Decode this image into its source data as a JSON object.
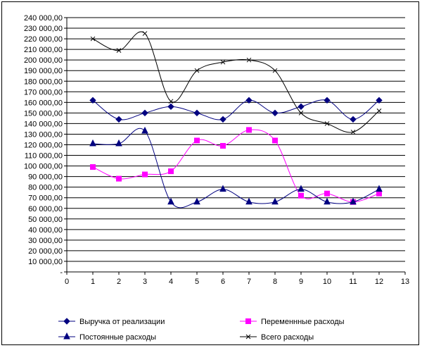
{
  "chart_data": {
    "type": "line",
    "xlim": [
      0,
      13
    ],
    "ylim": [
      0,
      240000
    ],
    "x_ticks": [
      "0",
      "1",
      "2",
      "3",
      "4",
      "5",
      "6",
      "7",
      "8",
      "9",
      "10",
      "11",
      "12",
      "13"
    ],
    "y_ticks": [
      "-",
      "10 000,00",
      "20 000,00",
      "30 000,00",
      "40 000,00",
      "50 000,00",
      "60 000,00",
      "70 000,00",
      "80 000,00",
      "90 000,00",
      "100 000,00",
      "110 000,00",
      "120 000,00",
      "130 000,00",
      "140 000,00",
      "150 000,00",
      "160 000,00",
      "170 000,00",
      "180 000,00",
      "190 000,00",
      "200 000,00",
      "210 000,00",
      "220 000,00",
      "230 000,00",
      "240 000,00"
    ],
    "grid": "horizontal",
    "legend_position": "bottom",
    "x": [
      1,
      2,
      3,
      4,
      5,
      6,
      7,
      8,
      9,
      10,
      11,
      12
    ],
    "series": [
      {
        "name": "Выручка от реализации",
        "color": "#000080",
        "marker": "diamond",
        "values": [
          162000,
          144000,
          150000,
          156000,
          150000,
          144000,
          162000,
          150000,
          156000,
          162000,
          144000,
          162000
        ]
      },
      {
        "name": "Переменнные расходы",
        "color": "#ff00ff",
        "marker": "square",
        "values": [
          99000,
          88000,
          92000,
          95000,
          124000,
          119000,
          134000,
          124000,
          72000,
          74000,
          66000,
          74000
        ]
      },
      {
        "name": "Постоянные расходы",
        "color": "#000080",
        "marker": "triangle",
        "values": [
          121000,
          121000,
          133000,
          66000,
          66000,
          78000,
          66000,
          66000,
          78000,
          66000,
          66000,
          78000
        ]
      },
      {
        "name": "Всего расходы",
        "color": "#000000",
        "marker": "x",
        "values": [
          220000,
          209000,
          225000,
          161000,
          190000,
          198000,
          200000,
          190000,
          150000,
          140000,
          132000,
          152000
        ]
      }
    ]
  }
}
